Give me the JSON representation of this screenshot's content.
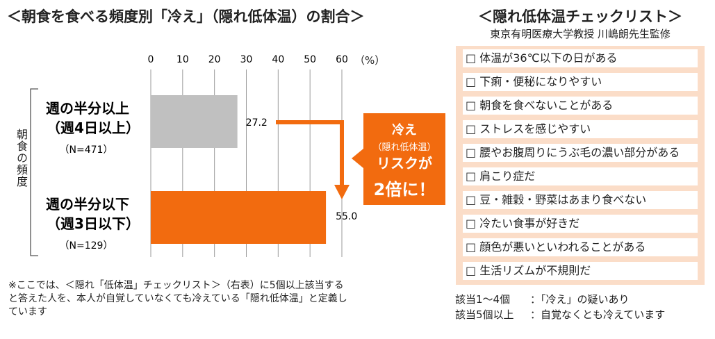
{
  "left_title": "＜朝食を食べる頻度別「冷え」（隠れ低体温）の割合＞",
  "chart_data": {
    "type": "bar",
    "orientation": "horizontal",
    "title": "＜朝食を食べる頻度別「冷え」（隠れ低体温）の割合＞",
    "x_unit": "（%）",
    "xlim": [
      0,
      60
    ],
    "x_ticks": [
      "0",
      "10",
      "20",
      "30",
      "40",
      "50",
      "60"
    ],
    "ylabel": "朝食の頻度",
    "categories": [
      {
        "line1": "週の半分以上",
        "line2": "（週4日以上）",
        "n": "（N=471）"
      },
      {
        "line1": "週の半分以下",
        "line2": "（週3日以下）",
        "n": "（N=129）"
      }
    ],
    "values": [
      27.2,
      55.0
    ],
    "value_labels": [
      "27.2",
      "55.0"
    ],
    "colors": [
      "#c0c0c0",
      "#f26b0f"
    ],
    "grid": true
  },
  "callout": {
    "line1": "冷え",
    "line2": "（隠れ低体温）",
    "line3": "リスクが",
    "line4": "2倍に！",
    "color": "#f26b0f"
  },
  "note": "※ここでは、＜隠れ「低体温」チェックリスト＞（右表）に5個以上該当すると答えた人を、本人が自覚していなくても冷えている「隠れ低体温」と定義しています",
  "checklist": {
    "title": "＜隠れ低体温チェックリスト＞",
    "subtitle": "東京有明医療大学教授 川嶋朗先生監修",
    "items": [
      "□ 体温が36℃以下の日がある",
      "□ 下痢・便秘になりやすい",
      "□ 朝食を食べないことがある",
      "□ ストレスを感じやすい",
      "□ 腰やお腹周りにうぶ毛の濃い部分がある",
      "□ 肩こり症だ",
      "□ 豆・雑穀・野菜はあまり食べない",
      "□ 冷たい食事が好きだ",
      "□ 顔色が悪いといわれることがある",
      "□ 生活リズムが不規則だ"
    ],
    "panel_color": "#fbddc8",
    "legend": [
      {
        "key": "該当1～4個",
        "value": "：「冷え」の疑いあり"
      },
      {
        "key": "該当5個以上",
        "value": "：自覚なくとも冷えています"
      }
    ]
  }
}
